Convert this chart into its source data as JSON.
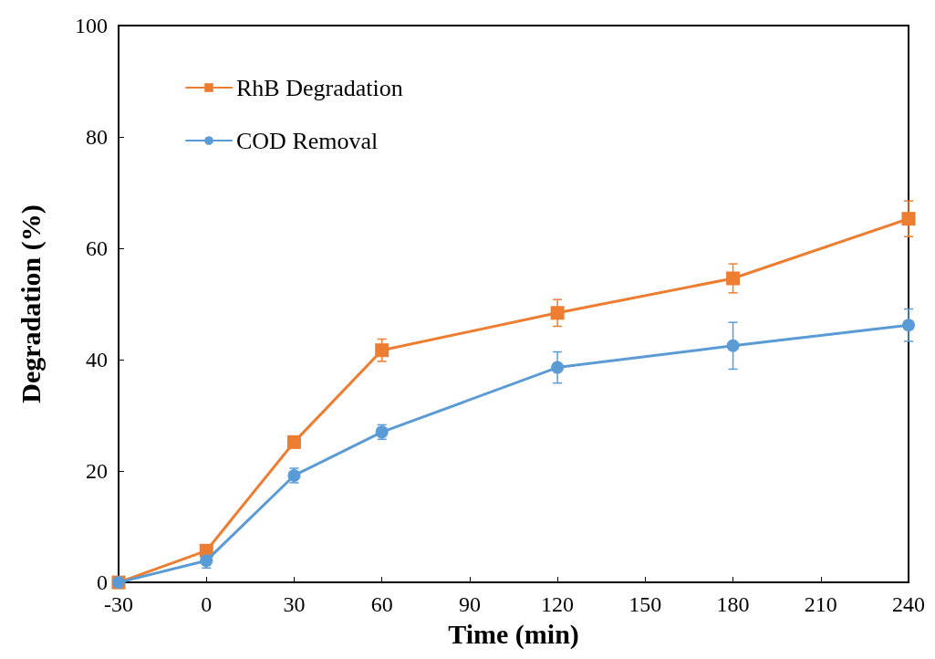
{
  "chart_data": {
    "type": "line",
    "xlabel": "Time (min)",
    "ylabel": "Degradation (%)",
    "x": [
      -30,
      0,
      30,
      60,
      120,
      180,
      240
    ],
    "xlim": [
      -30,
      240
    ],
    "xticks": [
      -30,
      0,
      30,
      60,
      90,
      120,
      150,
      180,
      210,
      240
    ],
    "ylim": [
      0,
      100
    ],
    "yticks": [
      0,
      20,
      40,
      60,
      80,
      100
    ],
    "grid": false,
    "legend": "top left",
    "line_style": "solid",
    "series": [
      {
        "name": "RhB Degradation",
        "color": "#ed7d31",
        "marker": "square",
        "values": [
          0,
          5.7,
          25.2,
          41.7,
          48.4,
          54.6,
          65.3
        ],
        "errors": [
          null,
          null,
          1,
          2,
          2.4,
          2.6,
          3.2
        ]
      },
      {
        "name": "COD Removal",
        "color": "#5b9bd5",
        "marker": "circle",
        "values": [
          0,
          3.9,
          19.2,
          27,
          38.6,
          42.5,
          46.2
        ],
        "errors": [
          null,
          1.3,
          1.3,
          1.3,
          2.8,
          4.2,
          2.9
        ]
      }
    ]
  }
}
